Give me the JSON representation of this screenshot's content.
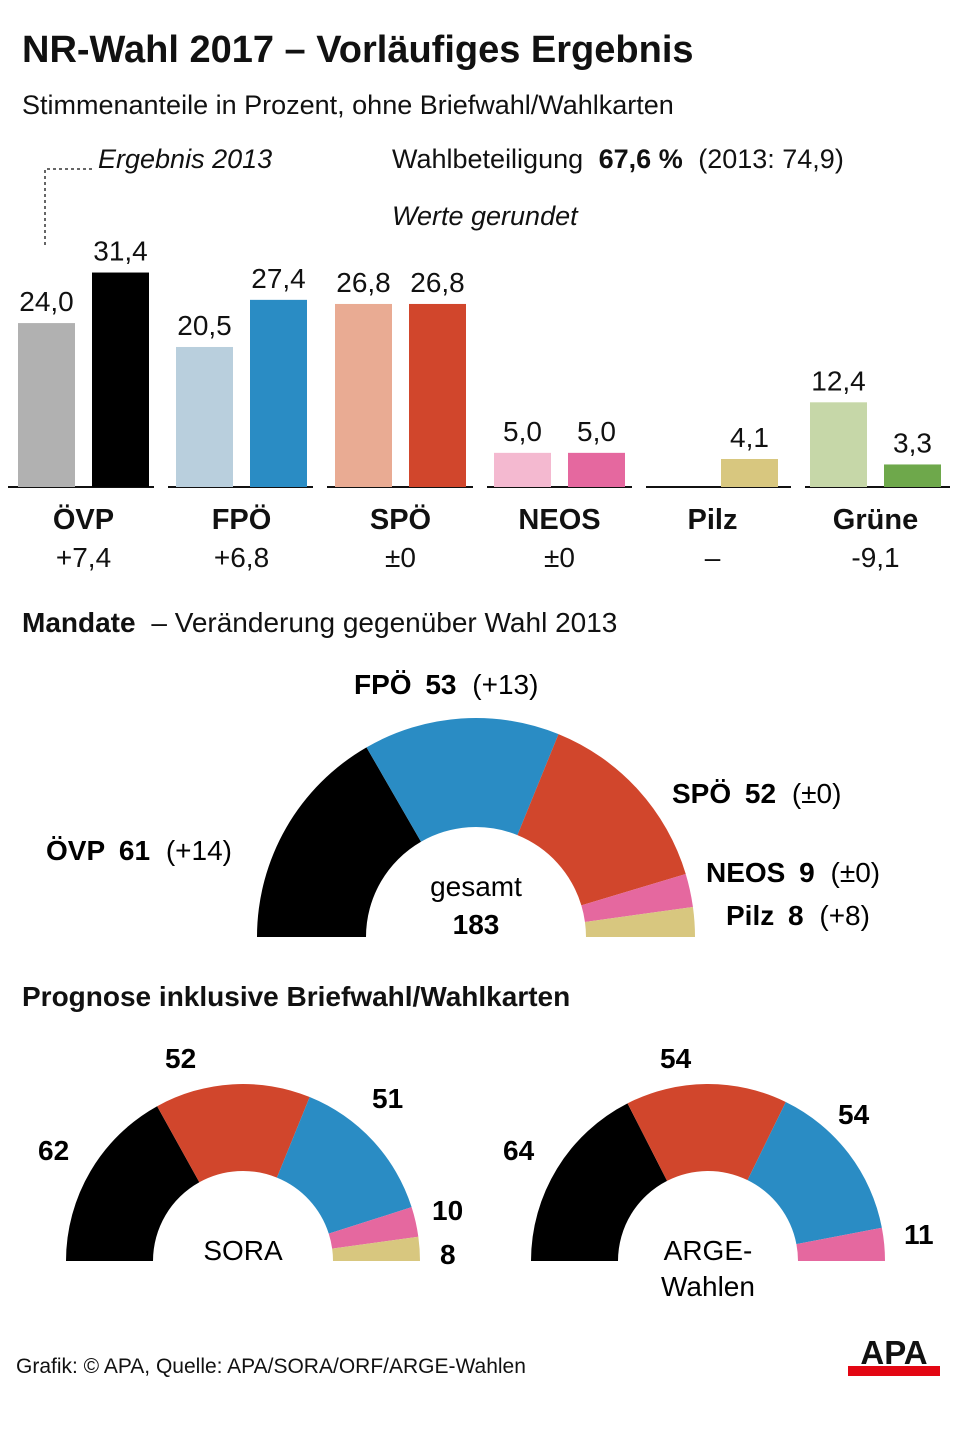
{
  "title": "NR-Wahl 2017 – Vorläufiges Ergebnis",
  "subtitle": "Stimmenanteile in Prozent, ohne Briefwahl/Wahlkarten",
  "legend_2013": "Ergebnis 2013",
  "turnout": {
    "label": "Wahlbeteiligung",
    "value": "67,6 %",
    "previous": "(2013: 74,9)"
  },
  "rounded_note": "Werte gerundet",
  "mandate_heading": {
    "bold": "Mandate",
    "rest": "– Veränderung gegenüber Wahl 2013"
  },
  "prognose_heading": "Prognose inklusive Briefwahl/Wahlkarten",
  "footer": "Grafik: © APA, Quelle: APA/SORA/ORF/ARGE-Wahlen",
  "logo": "APA",
  "colors": {
    "OEVP": "#000000",
    "OEVP_2013": "#b1b1b1",
    "FPOE": "#2a8cc4",
    "FPOE_2013": "#b9cfdd",
    "SPOE": "#d1462c",
    "SPOE_2013": "#e9ab93",
    "NEOS": "#e5689f",
    "NEOS_2013": "#f4b9d0",
    "Pilz": "#d8c77f",
    "Gruene": "#6ea84b",
    "Gruene_2013": "#c6d7a8",
    "logo_red": "#e30613"
  },
  "chart_data": [
    {
      "type": "bar",
      "title": "Stimmenanteile in Prozent",
      "categories": [
        "ÖVP",
        "FPÖ",
        "SPÖ",
        "NEOS",
        "Pilz",
        "Grüne"
      ],
      "series": [
        {
          "name": "Ergebnis 2013",
          "values": [
            24.0,
            20.5,
            26.8,
            5.0,
            null,
            12.4
          ],
          "labels": [
            "24,0",
            "20,5",
            "26,8",
            "5,0",
            "",
            "12,4"
          ],
          "color_keys": [
            "OEVP_2013",
            "FPOE_2013",
            "SPOE_2013",
            "NEOS_2013",
            "",
            "Gruene_2013"
          ]
        },
        {
          "name": "2017",
          "values": [
            31.4,
            27.4,
            26.8,
            5.0,
            4.1,
            3.3
          ],
          "labels": [
            "31,4",
            "27,4",
            "26,8",
            "5,0",
            "4,1",
            "3,3"
          ],
          "color_keys": [
            "OEVP",
            "FPOE",
            "SPOE",
            "NEOS",
            "Pilz",
            "Gruene"
          ]
        }
      ],
      "changes": [
        "+7,4",
        "+6,8",
        "±0",
        "±0",
        "–",
        "-9,1"
      ],
      "ylim": [
        0,
        32
      ]
    },
    {
      "type": "pie",
      "title": "Mandate",
      "center_label": "gesamt",
      "total": 183,
      "slices": [
        {
          "party": "ÖVP",
          "value": 61,
          "change": "(+14)",
          "color_key": "OEVP"
        },
        {
          "party": "FPÖ",
          "value": 53,
          "change": "(+13)",
          "color_key": "FPOE"
        },
        {
          "party": "SPÖ",
          "value": 52,
          "change": "(±0)",
          "color_key": "SPOE"
        },
        {
          "party": "NEOS",
          "value": 9,
          "change": "(±0)",
          "color_key": "NEOS"
        },
        {
          "party": "Pilz",
          "value": 8,
          "change": "(+8)",
          "color_key": "Pilz"
        }
      ]
    },
    {
      "type": "pie",
      "title": "SORA",
      "center_label": "SORA",
      "slices": [
        {
          "party": "ÖVP",
          "value": 62,
          "color_key": "OEVP"
        },
        {
          "party": "SPÖ",
          "value": 52,
          "color_key": "SPOE"
        },
        {
          "party": "FPÖ",
          "value": 51,
          "color_key": "FPOE"
        },
        {
          "party": "NEOS",
          "value": 10,
          "color_key": "NEOS"
        },
        {
          "party": "Pilz",
          "value": 8,
          "color_key": "Pilz"
        }
      ]
    },
    {
      "type": "pie",
      "title": "ARGE-Wahlen",
      "center_label": "ARGE-\nWahlen",
      "slices": [
        {
          "party": "ÖVP",
          "value": 64,
          "color_key": "OEVP"
        },
        {
          "party": "SPÖ",
          "value": 54,
          "color_key": "SPOE"
        },
        {
          "party": "FPÖ",
          "value": 54,
          "color_key": "FPOE"
        },
        {
          "party": "NEOS",
          "value": 11,
          "color_key": "NEOS"
        }
      ]
    }
  ]
}
